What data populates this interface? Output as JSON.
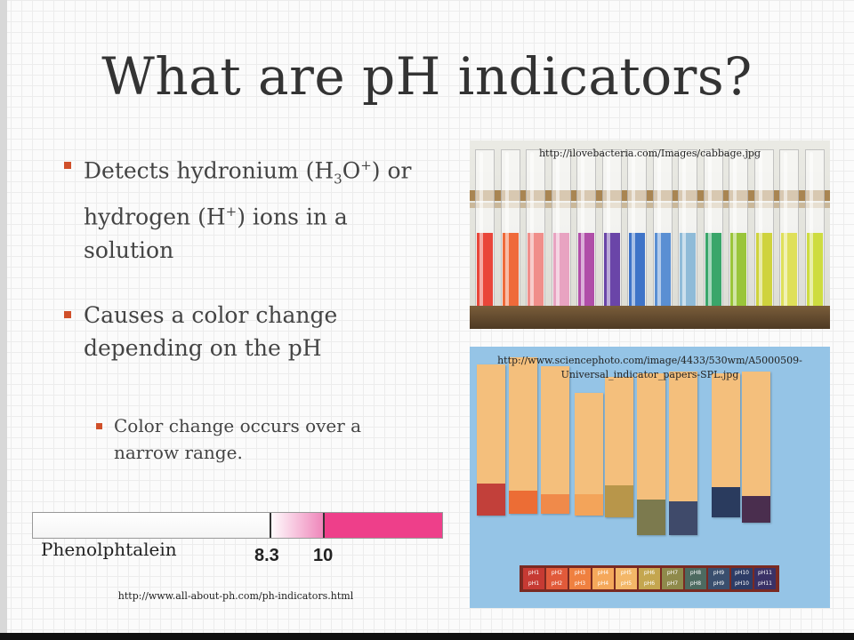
{
  "slide": {
    "title": "What are pH indicators?",
    "bullets": [
      {
        "pre": "Detects hydronium (H",
        "sub": "3",
        "mid": "O",
        "sup": "+",
        "post": ") or"
      },
      {
        "line2_pre": "hydrogen (H",
        "line2_sup": "+",
        "line2_post": ") ions in a"
      },
      {
        "line3": "solution"
      }
    ],
    "bullet2_line1": "Causes a color change",
    "bullet2_line2": "depending on the pH",
    "sub_bullet_line1": "Color change occurs over a",
    "sub_bullet_line2": "narrow range.",
    "accent_color": "#d0502a"
  },
  "images": {
    "cabbage_caption": "http://ilovebacteria.com/Images/cabbage.jpg",
    "papers_caption_line1": "http://www.sciencephoto.com/image/4433/530wm/A5000509-",
    "papers_caption_line2": "Universal_indicator_papers-SPL.jpg",
    "tube_colors": [
      "#e9463a",
      "#ef6a3a",
      "#f08e8a",
      "#e8a3c1",
      "#b04ea8",
      "#6a45a8",
      "#3f74c8",
      "#5a8fd3",
      "#8fbbd8",
      "#3aa66a",
      "#9ac53a",
      "#cfd33d",
      "#dfe05a",
      "#cedc40"
    ],
    "strip_dip_colors": [
      "#c2403a",
      "#ec6d35",
      "#f08a4a",
      "#f3a45a",
      "#b8964a",
      "#7c7a4e",
      "#3f4a6a",
      "#2a3b5e",
      "#4a2e4e"
    ],
    "scale_labels": [
      "pH1",
      "pH2",
      "pH3",
      "pH4",
      "pH5",
      "pH6",
      "pH7",
      "pH8",
      "pH9",
      "pH10",
      "pH11"
    ],
    "scale_colors": [
      "#c63a33",
      "#e15a3a",
      "#ef8040",
      "#f5a85b",
      "#f3b768",
      "#c4a64f",
      "#8f8a4b",
      "#4d6a60",
      "#3a4f6e",
      "#2d3c66",
      "#3a3166"
    ]
  },
  "phenolphthalein": {
    "label": "Phenolphtalein",
    "tick1": "8.3",
    "tick2": "10",
    "source": "http://www.all-about-ph.com/ph-indicators.html",
    "pink_color": "#ee3f8a"
  }
}
